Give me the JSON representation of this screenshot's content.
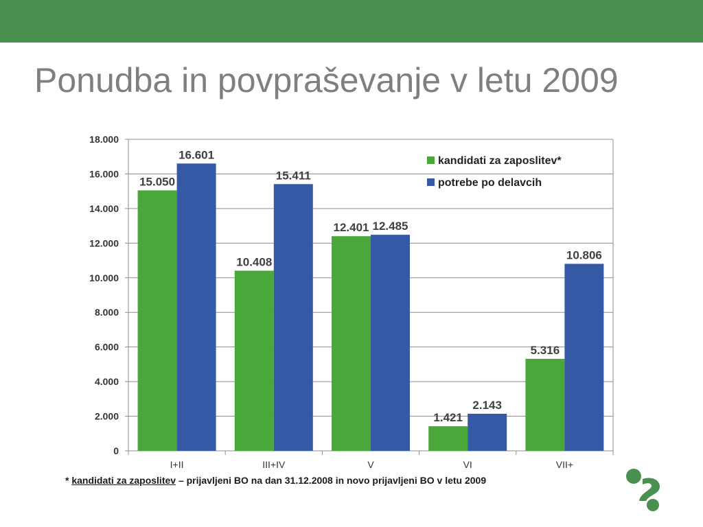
{
  "slide": {
    "title": "Ponudba in povpraševanje v letu 2009",
    "brand_color": "#4A9150",
    "title_color": "#7F7F7F"
  },
  "chart_data": {
    "type": "bar",
    "categories": [
      "I+II",
      "III+IV",
      "V",
      "VI",
      "VII+"
    ],
    "series": [
      {
        "name": "kandidati za zaposlitev*",
        "color": "#4AA83A",
        "values": [
          15050,
          10408,
          12401,
          1421,
          5316
        ]
      },
      {
        "name": "potrebe po delavcih",
        "color": "#3559A5",
        "values": [
          16601,
          15411,
          12485,
          2143,
          10806
        ]
      }
    ],
    "data_labels": [
      [
        "15.050",
        "10.408",
        "12.401",
        "1.421",
        "5.316"
      ],
      [
        "16.601",
        "15.411",
        "12.485",
        "2.143",
        "10.806"
      ]
    ],
    "ylim": [
      0,
      18000
    ],
    "yticks": [
      0,
      2000,
      4000,
      6000,
      8000,
      10000,
      12000,
      14000,
      16000,
      18000
    ],
    "ytick_labels": [
      "0",
      "2.000",
      "4.000",
      "6.000",
      "8.000",
      "10.000",
      "12.000",
      "14.000",
      "16.000",
      "18.000"
    ],
    "grid": true,
    "legend": "top-right",
    "title": "",
    "xlabel": "",
    "ylabel": ""
  },
  "footnote": {
    "prefix": "* ",
    "term": "kandidati za zaposlitev",
    "text": " – prijavljeni BO na dan 31.12.2008 in novo prijavljeni BO v letu 2009"
  },
  "logo": {
    "icon": "question-mark-logo-icon",
    "color": "#4A9150"
  }
}
